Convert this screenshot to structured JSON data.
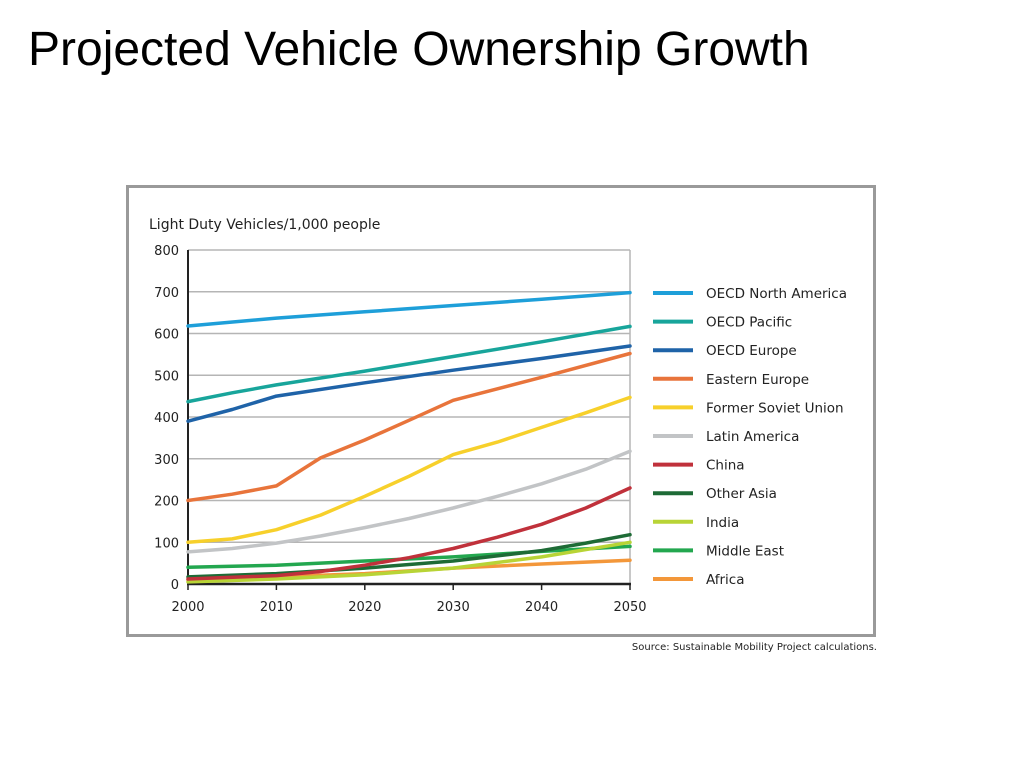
{
  "slide": {
    "title": "Projected Vehicle Ownership Growth",
    "source": "Source: Sustainable Mobility Project calculations."
  },
  "chart_data": {
    "type": "line",
    "title": "Light Duty Vehicles/1,000 people",
    "xlabel": "",
    "ylabel": "",
    "xlim": [
      2000,
      2050
    ],
    "ylim": [
      0,
      800
    ],
    "x_ticks": [
      2000,
      2010,
      2020,
      2030,
      2040,
      2050
    ],
    "y_ticks": [
      0,
      100,
      200,
      300,
      400,
      500,
      600,
      700,
      800
    ],
    "grid": true,
    "legend_position": "right",
    "series": [
      {
        "name": "OECD North America",
        "color": "#1e9fd9",
        "points": [
          [
            2000,
            618
          ],
          [
            2010,
            637
          ],
          [
            2020,
            652
          ],
          [
            2030,
            667
          ],
          [
            2040,
            682
          ],
          [
            2050,
            698
          ]
        ]
      },
      {
        "name": "OECD Pacific",
        "color": "#18a59b",
        "points": [
          [
            2000,
            437
          ],
          [
            2005,
            458
          ],
          [
            2010,
            477
          ],
          [
            2020,
            510
          ],
          [
            2030,
            545
          ],
          [
            2040,
            580
          ],
          [
            2050,
            617
          ]
        ]
      },
      {
        "name": "OECD Europe",
        "color": "#1f63a8",
        "points": [
          [
            2000,
            390
          ],
          [
            2005,
            418
          ],
          [
            2010,
            450
          ],
          [
            2020,
            482
          ],
          [
            2030,
            512
          ],
          [
            2040,
            540
          ],
          [
            2050,
            570
          ]
        ]
      },
      {
        "name": "Eastern Europe",
        "color": "#e8743b",
        "points": [
          [
            2000,
            200
          ],
          [
            2005,
            215
          ],
          [
            2010,
            235
          ],
          [
            2015,
            302
          ],
          [
            2020,
            345
          ],
          [
            2025,
            392
          ],
          [
            2030,
            440
          ],
          [
            2040,
            495
          ],
          [
            2050,
            552
          ]
        ]
      },
      {
        "name": "Former Soviet Union",
        "color": "#f7d02b",
        "points": [
          [
            2000,
            100
          ],
          [
            2005,
            108
          ],
          [
            2010,
            130
          ],
          [
            2015,
            165
          ],
          [
            2020,
            210
          ],
          [
            2025,
            258
          ],
          [
            2030,
            310
          ],
          [
            2035,
            340
          ],
          [
            2040,
            375
          ],
          [
            2045,
            410
          ],
          [
            2050,
            447
          ]
        ]
      },
      {
        "name": "Latin America",
        "color": "#c2c4c6",
        "points": [
          [
            2000,
            77
          ],
          [
            2005,
            85
          ],
          [
            2010,
            98
          ],
          [
            2015,
            115
          ],
          [
            2020,
            135
          ],
          [
            2025,
            157
          ],
          [
            2030,
            182
          ],
          [
            2035,
            210
          ],
          [
            2040,
            240
          ],
          [
            2045,
            275
          ],
          [
            2050,
            318
          ]
        ]
      },
      {
        "name": "China",
        "color": "#c0313b",
        "points": [
          [
            2000,
            12
          ],
          [
            2010,
            20
          ],
          [
            2015,
            30
          ],
          [
            2020,
            45
          ],
          [
            2025,
            63
          ],
          [
            2030,
            85
          ],
          [
            2035,
            112
          ],
          [
            2040,
            143
          ],
          [
            2045,
            182
          ],
          [
            2050,
            230
          ]
        ]
      },
      {
        "name": "Other Asia",
        "color": "#1e6b36",
        "points": [
          [
            2000,
            17
          ],
          [
            2010,
            25
          ],
          [
            2020,
            38
          ],
          [
            2030,
            55
          ],
          [
            2040,
            80
          ],
          [
            2045,
            98
          ],
          [
            2050,
            118
          ]
        ]
      },
      {
        "name": "India",
        "color": "#b8d436",
        "points": [
          [
            2000,
            5
          ],
          [
            2010,
            12
          ],
          [
            2020,
            22
          ],
          [
            2030,
            38
          ],
          [
            2040,
            65
          ],
          [
            2050,
            100
          ]
        ]
      },
      {
        "name": "Middle East",
        "color": "#23a74f",
        "points": [
          [
            2000,
            40
          ],
          [
            2010,
            45
          ],
          [
            2020,
            55
          ],
          [
            2030,
            65
          ],
          [
            2040,
            78
          ],
          [
            2050,
            90
          ]
        ]
      },
      {
        "name": "Africa",
        "color": "#f3973a",
        "points": [
          [
            2000,
            10
          ],
          [
            2010,
            17
          ],
          [
            2020,
            25
          ],
          [
            2030,
            38
          ],
          [
            2040,
            48
          ],
          [
            2050,
            57
          ]
        ]
      }
    ]
  }
}
